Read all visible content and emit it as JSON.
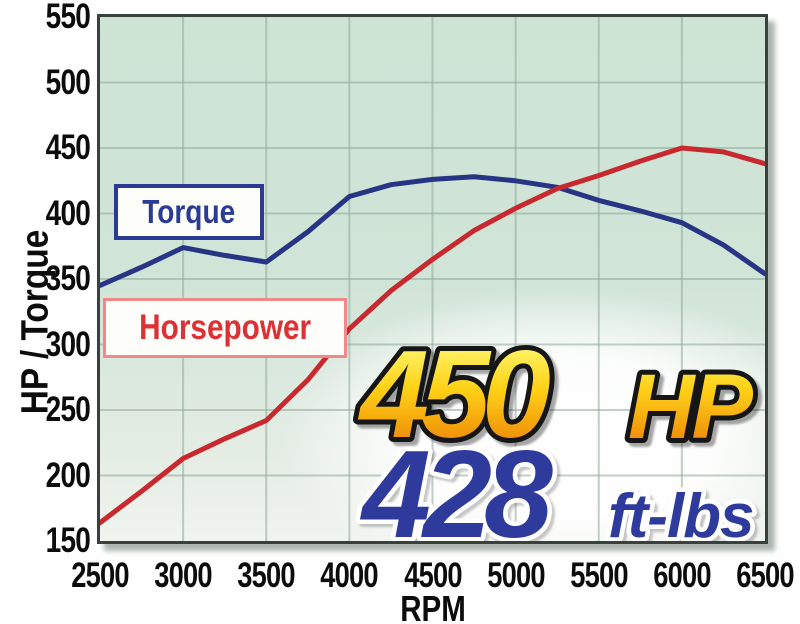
{
  "axes": {
    "xlabel": "RPM",
    "ylabel": "HP / Torque"
  },
  "callout": {
    "hp_value": "450",
    "hp_unit": "HP",
    "torque_value": "428",
    "torque_unit": "ft-lbs"
  },
  "colors": {
    "plot_background": "#cde4d5",
    "plot_border": "#39413c",
    "gridline": "#8fa89a",
    "torque_line": "#273584",
    "horsepower_line": "#c8292f",
    "axis_text": "#0c0c0c",
    "legend_torque_text": "#2b3a94",
    "legend_horsepower_text": "#dd3136",
    "callout_gold_top": "#fff875",
    "callout_gold_bottom": "#ef8e0e",
    "callout_blue": "#2e3b9d"
  },
  "chart_data": {
    "type": "line",
    "title": "",
    "xlabel": "RPM",
    "ylabel": "HP / Torque",
    "xlim": [
      2500,
      6500
    ],
    "ylim": [
      150,
      550
    ],
    "grid": true,
    "legend_position": "inside-left",
    "x_ticks": [
      "2500",
      "3000",
      "3500",
      "4000",
      "4500",
      "5000",
      "5500",
      "6000",
      "6500"
    ],
    "y_ticks": [
      "150",
      "200",
      "250",
      "300",
      "350",
      "400",
      "450",
      "500",
      "550"
    ],
    "x": [
      2500,
      2750,
      3000,
      3250,
      3500,
      3750,
      4000,
      4250,
      4500,
      4750,
      5000,
      5250,
      5500,
      5750,
      6000,
      6250,
      6500
    ],
    "series": [
      {
        "name": "Torque",
        "color": "#273584",
        "values": [
          345,
          359,
          374,
          368,
          363,
          386,
          413,
          422,
          426,
          428,
          425,
          420,
          410,
          402,
          393,
          376,
          354
        ],
        "peak_label": "428 ft-lbs"
      },
      {
        "name": "Horsepower",
        "color": "#c8292f",
        "values": [
          164,
          188,
          213,
          228,
          242,
          273,
          312,
          341,
          365,
          387,
          404,
          419,
          429,
          440,
          450,
          447,
          438
        ],
        "peak_label": "450 HP"
      }
    ]
  }
}
